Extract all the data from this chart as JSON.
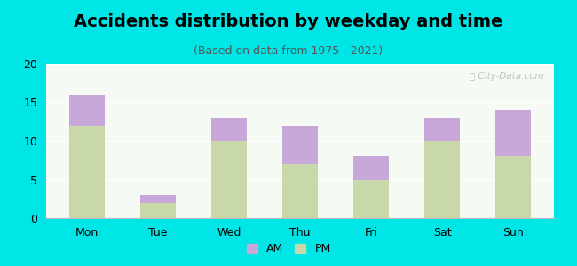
{
  "categories": [
    "Mon",
    "Tue",
    "Wed",
    "Thu",
    "Fri",
    "Sat",
    "Sun"
  ],
  "pm_values": [
    12,
    2,
    10,
    7,
    5,
    10,
    8
  ],
  "am_values": [
    4,
    1,
    3,
    5,
    3,
    3,
    6
  ],
  "title": "Accidents distribution by weekday and time",
  "subtitle": "(Based on data from 1975 - 2021)",
  "ylim": [
    0,
    20
  ],
  "yticks": [
    0,
    5,
    10,
    15,
    20
  ],
  "am_color": "#c8a8d8",
  "pm_color": "#c8d8a8",
  "bg_color": "#00e5e5",
  "plot_bg_top": "#f5faf5",
  "plot_bg_bottom": "#e8f0e0",
  "bar_width": 0.5,
  "title_fontsize": 14,
  "subtitle_fontsize": 9,
  "legend_fontsize": 9,
  "tick_fontsize": 9,
  "watermark_text": "ⓘ City-Data.com"
}
